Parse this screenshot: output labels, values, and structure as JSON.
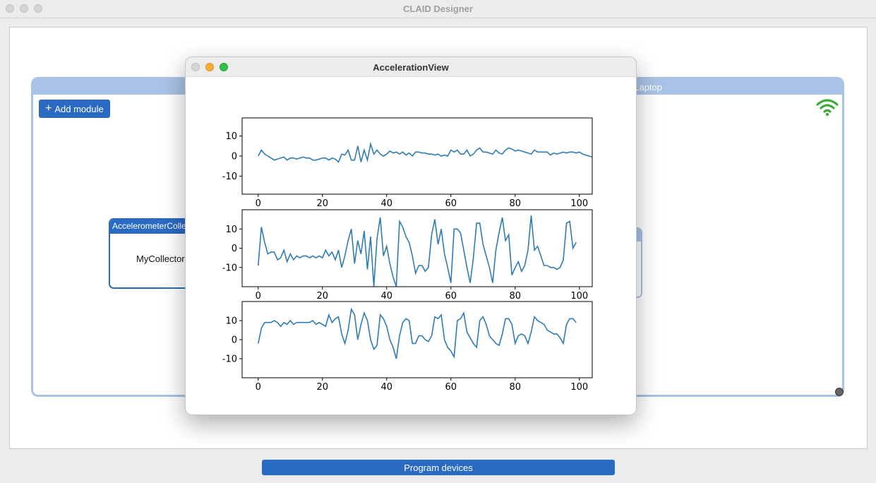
{
  "app": {
    "title": "CLAID Designer"
  },
  "device": {
    "name": "Laptop",
    "add_module_label": "Add module"
  },
  "module": {
    "title": "AccelerometerCollector",
    "instance": "MyCollector"
  },
  "footer": {
    "program_label": "Program devices"
  },
  "popup": {
    "title": "AccelerationView"
  },
  "chart_data": [
    {
      "type": "line",
      "xlim": [
        -5,
        104
      ],
      "ylim": [
        -19,
        19
      ],
      "xticks": [
        0,
        20,
        40,
        60,
        80,
        100
      ],
      "yticks": [
        -10,
        0,
        10
      ],
      "color": "#2f7cb4",
      "series": [
        {
          "values": [
            0,
            3,
            1,
            0,
            -1,
            -2,
            -1.5,
            -1,
            -0.5,
            -2,
            -1,
            -1,
            -1.5,
            -1,
            -0.5,
            -1,
            -1,
            -2,
            -2,
            -1.5,
            -1,
            -1,
            -2,
            -1,
            -1.5,
            -3,
            1,
            0.5,
            3,
            -2,
            -2,
            5,
            -3,
            3,
            -2,
            6,
            1,
            3,
            1,
            0,
            1,
            2.5,
            1.5,
            2,
            1,
            2,
            0.5,
            1.5,
            0,
            2,
            2,
            1.5,
            1.5,
            1,
            1,
            0.5,
            1,
            0,
            0.5,
            0,
            3,
            2,
            3,
            1,
            1,
            3,
            0,
            1,
            3,
            4,
            2,
            2,
            1.5,
            1,
            3,
            1.5,
            1,
            3,
            4,
            3.5,
            2.5,
            3,
            2.5,
            2,
            1.5,
            1,
            3,
            2,
            2,
            2,
            2,
            0.5,
            1.5,
            1,
            1.5,
            2,
            1.5,
            2,
            2,
            1.5,
            2,
            1,
            0.5,
            0,
            -0.5
          ]
        }
      ]
    },
    {
      "type": "line",
      "xlim": [
        -5,
        104
      ],
      "ylim": [
        -20,
        20
      ],
      "xticks": [
        0,
        20,
        40,
        60,
        80,
        100
      ],
      "yticks": [
        -10,
        0,
        10
      ],
      "color": "#2f7cb4",
      "series": [
        {
          "values": [
            -9,
            11,
            3,
            -3,
            -2,
            -2,
            -6,
            -5,
            -1,
            -7,
            -3,
            -6,
            -4,
            -5,
            -4,
            -4,
            -5,
            -4,
            -5,
            -4,
            -5,
            -1,
            -4,
            -2,
            -6,
            -1,
            -10,
            -4,
            4,
            10,
            -8,
            4,
            -3,
            9,
            -11,
            6,
            -20,
            5,
            16,
            -4,
            1,
            -8,
            -15,
            -20,
            14,
            11,
            6,
            3,
            -4,
            -13,
            -9,
            -9,
            -12,
            -10,
            7,
            15,
            2,
            10,
            -3,
            -10,
            -18,
            10,
            10,
            8,
            -1,
            -10,
            -18,
            -5,
            13,
            13,
            2,
            -4,
            -10,
            -18,
            -1,
            8,
            16,
            4,
            7,
            -14,
            -10,
            -7,
            -12,
            -9,
            -1,
            17,
            -1,
            1,
            -4,
            -9,
            -9,
            -10,
            -10,
            -11,
            -10,
            -6,
            13,
            14,
            0,
            3
          ]
        }
      ]
    },
    {
      "type": "line",
      "xlim": [
        -5,
        104
      ],
      "ylim": [
        -20,
        20
      ],
      "xticks": [
        0,
        20,
        40,
        60,
        80,
        100
      ],
      "yticks": [
        -10,
        0,
        10
      ],
      "color": "#2f7cb4",
      "series": [
        {
          "values": [
            -2,
            6,
            9,
            9,
            9,
            10,
            9,
            7,
            9,
            8,
            10,
            8,
            9,
            9,
            9,
            9,
            9,
            10,
            8,
            9,
            8,
            7,
            13,
            9,
            11,
            12,
            3,
            -2,
            5,
            16,
            13,
            0,
            8,
            14,
            10,
            0,
            -5,
            -3,
            13,
            11,
            7,
            0,
            -4,
            -10,
            2,
            9,
            11,
            10,
            -2,
            -2,
            2,
            2,
            0,
            -1,
            2,
            12,
            11,
            13,
            0,
            -4,
            -6,
            -9,
            10,
            11,
            14,
            4,
            1,
            -2,
            -4,
            10,
            12,
            8,
            2,
            0,
            -2,
            -3,
            3,
            11,
            11,
            8,
            -2,
            2,
            3,
            2,
            -2,
            4,
            12,
            10,
            9,
            8,
            5,
            4,
            3,
            3,
            1,
            -2,
            8,
            11,
            11,
            9
          ]
        }
      ]
    }
  ]
}
